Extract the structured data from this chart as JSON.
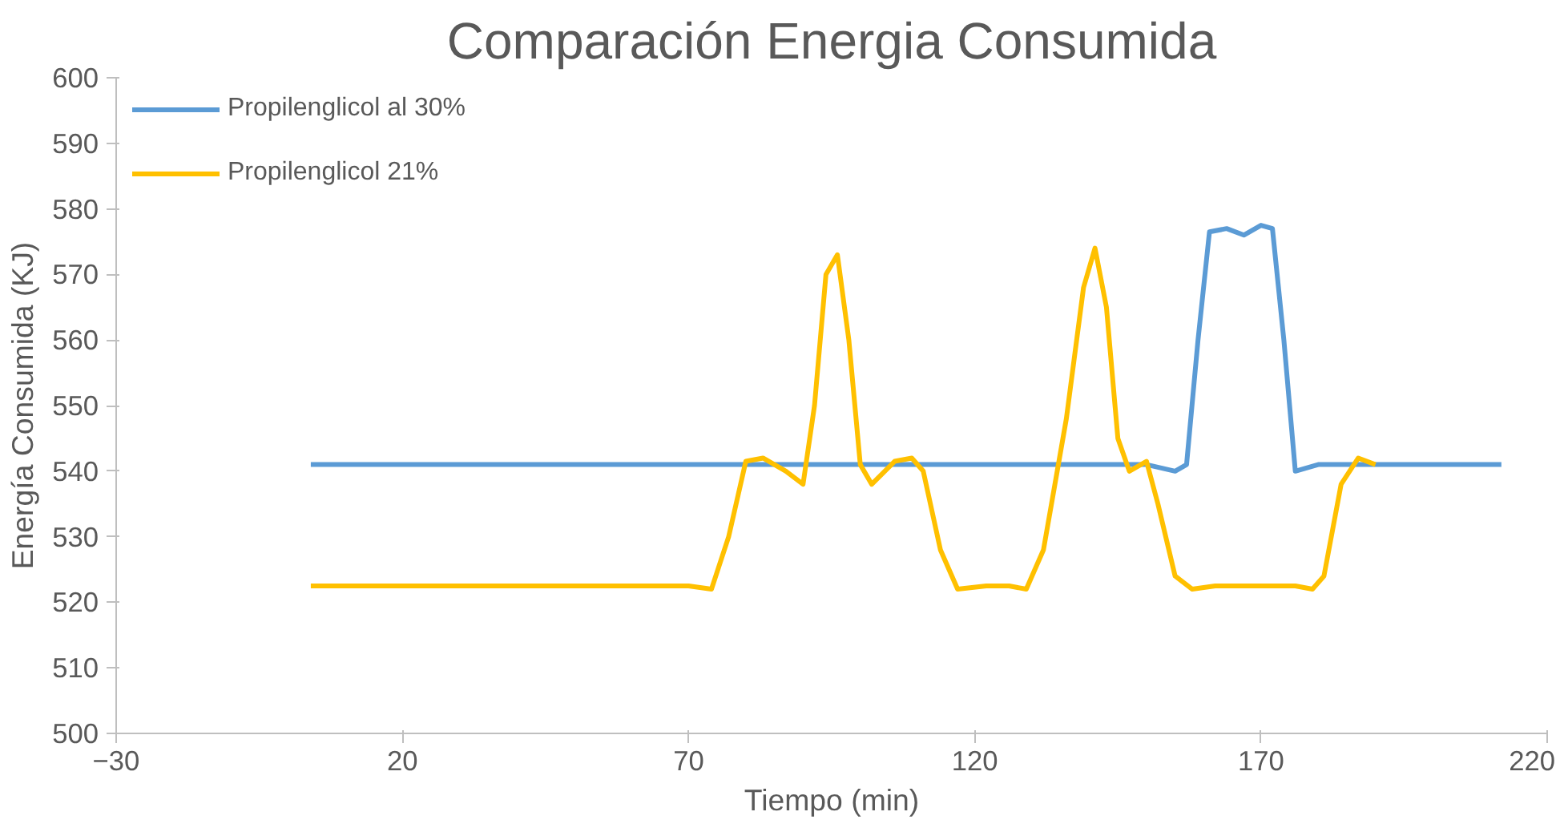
{
  "chart_data": {
    "type": "line",
    "title": "Comparación Energia Consumida",
    "xlabel": "Tiempo (min)",
    "ylabel": "Energía Consumida (KJ)",
    "xlim": [
      -30,
      220
    ],
    "xticks": [
      -30,
      20,
      70,
      120,
      170,
      220
    ],
    "ylim": [
      500,
      600
    ],
    "yticks": [
      500,
      510,
      520,
      530,
      540,
      550,
      560,
      570,
      580,
      590,
      600
    ],
    "grid": false,
    "legend": "top left",
    "marker": "none",
    "line_style": "solid",
    "series": [
      {
        "name": "Propilenglicol al 30%",
        "color": "#5b9bd5",
        "x": [
          4,
          60,
          120,
          150,
          155,
          157,
          159,
          161,
          164,
          167,
          170,
          172,
          174,
          176,
          180,
          212
        ],
        "values": [
          541,
          541,
          541,
          541,
          540,
          541,
          560,
          576.5,
          577,
          576,
          577.5,
          577,
          560,
          540,
          541,
          541
        ]
      },
      {
        "name": "Propilenglicol 21%",
        "color": "#ffc000",
        "x": [
          4,
          70,
          74,
          77,
          80,
          83,
          87,
          90,
          92,
          94,
          96,
          98,
          100,
          102,
          106,
          109,
          111,
          114,
          117,
          122,
          126,
          129,
          132,
          136,
          139,
          141,
          143,
          145,
          147,
          150,
          152,
          155,
          158,
          162,
          170,
          176,
          179,
          181,
          184,
          187,
          190
        ],
        "values": [
          522.5,
          522.5,
          522,
          530,
          541.5,
          542,
          540,
          538,
          550,
          570,
          573,
          560,
          541,
          538,
          541.5,
          542,
          540,
          528,
          522,
          522.5,
          522.5,
          522,
          528,
          548,
          568,
          574,
          565,
          545,
          540,
          541.5,
          535,
          524,
          522,
          522.5,
          522.5,
          522.5,
          522,
          524,
          538,
          542,
          541
        ]
      }
    ]
  }
}
